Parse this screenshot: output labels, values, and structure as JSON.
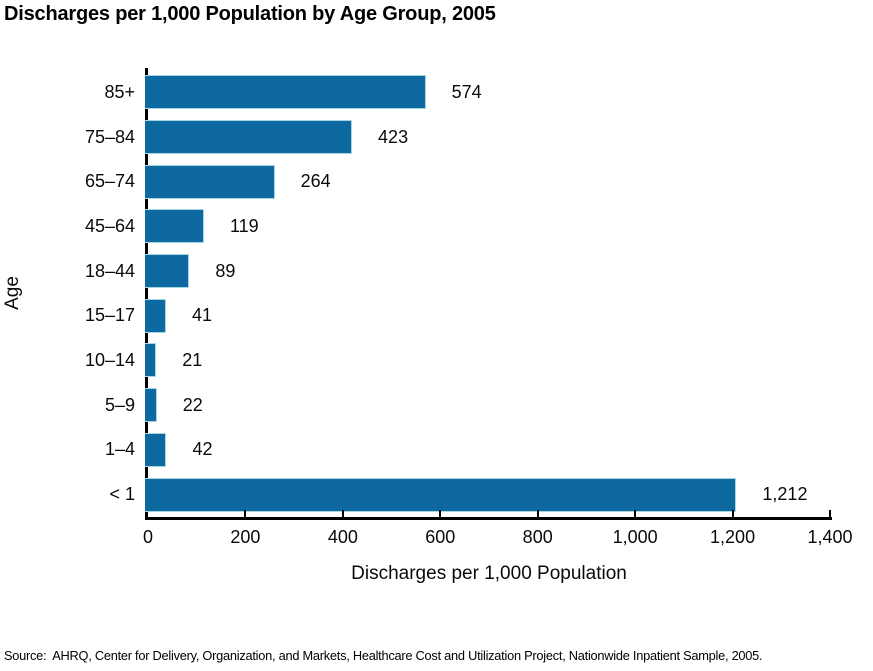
{
  "title": "Discharges per 1,000 Population by Age Group, 2005",
  "source": "Source:  AHRQ, Center for Delivery, Organization, and Markets, Healthcare Cost and Utilization Project, Nationwide Inpatient Sample, 2005.",
  "colors": {
    "bar_fill": "#0D69A0",
    "bar_edge": "#A5D8E2",
    "axis": "#000000",
    "text": "#000000",
    "background": "#FFFFFF"
  },
  "chart_data": {
    "type": "bar",
    "orientation": "horizontal",
    "title": "Discharges per 1,000 Population by Age Group, 2005",
    "xlabel": "Discharges per 1,000 Population",
    "ylabel": "Age",
    "categories": [
      "85+",
      "75–84",
      "65–74",
      "45–64",
      "18–44",
      "15–17",
      "10–14",
      "5–9",
      "1–4",
      "< 1"
    ],
    "values": [
      574,
      423,
      264,
      119,
      89,
      41,
      21,
      22,
      42,
      1212
    ],
    "value_labels": [
      "574",
      "423",
      "264",
      "119",
      "89",
      "41",
      "21",
      "22",
      "42",
      "1,212"
    ],
    "xlim": [
      0,
      1400
    ],
    "xticks": [
      0,
      200,
      400,
      600,
      800,
      1000,
      1200,
      1400
    ],
    "xtick_labels": [
      "0",
      "200",
      "400",
      "600",
      "800",
      "1,000",
      "1,200",
      "1,400"
    ],
    "grid": false,
    "legend": null
  }
}
